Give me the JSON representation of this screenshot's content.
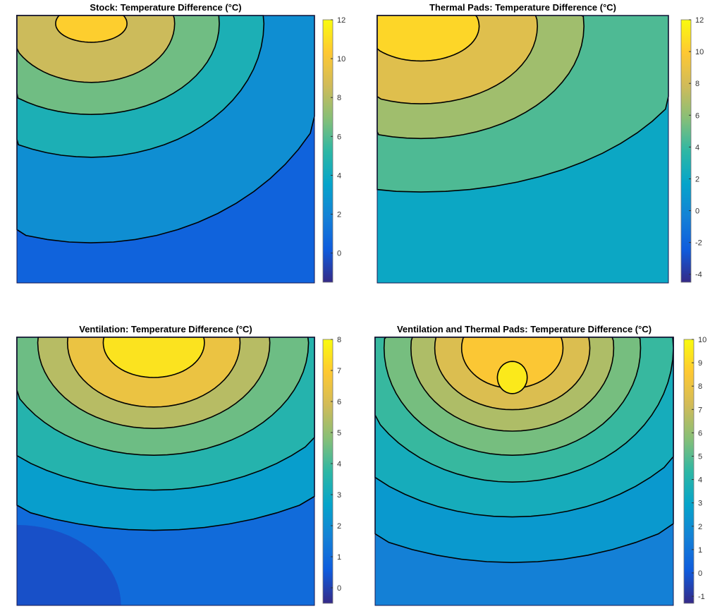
{
  "chart_data": [
    {
      "type": "heatmap",
      "title": "Stock: Temperature Difference (°C)",
      "clim": [
        -1.5,
        12
      ],
      "colorbar_ticks": [
        "12",
        "10",
        "8",
        "6",
        "4",
        "2",
        "0"
      ],
      "colorbar_tick_values": [
        12,
        10,
        8,
        6,
        4,
        2,
        0
      ],
      "background_value": 0.5,
      "contour_levels": [
        2,
        4,
        6,
        8,
        10
      ]
    },
    {
      "type": "heatmap",
      "title": "Thermal Pads: Temperature Difference (°C)",
      "clim": [
        -4.5,
        12
      ],
      "colorbar_ticks": [
        "12",
        "10",
        "8",
        "6",
        "4",
        "2",
        "0",
        "-2",
        "-4"
      ],
      "colorbar_tick_values": [
        12,
        10,
        8,
        6,
        4,
        2,
        0,
        -2,
        -4
      ],
      "background_value": 2,
      "contour_levels": [
        4,
        6,
        8,
        10
      ]
    },
    {
      "type": "heatmap",
      "title": "Ventilation: Temperature Difference (°C)",
      "clim": [
        -0.5,
        8
      ],
      "colorbar_ticks": [
        "8",
        "7",
        "6",
        "5",
        "4",
        "3",
        "2",
        "1",
        "0"
      ],
      "colorbar_tick_values": [
        8,
        7,
        6,
        5,
        4,
        3,
        2,
        1,
        0
      ],
      "background_value": 1,
      "contour_levels": [
        2,
        3,
        4,
        5,
        6,
        7
      ]
    },
    {
      "type": "heatmap",
      "title": "Ventilation and Thermal Pads: Temperature Difference (°C)",
      "clim": [
        -1.3,
        10
      ],
      "colorbar_ticks": [
        "10",
        "9",
        "8",
        "7",
        "6",
        "5",
        "4",
        "3",
        "2",
        "1",
        "0",
        "-1"
      ],
      "colorbar_tick_values": [
        10,
        9,
        8,
        7,
        6,
        5,
        4,
        3,
        2,
        1,
        0,
        -1
      ],
      "background_value": 1.5,
      "contour_levels": [
        2,
        3,
        4,
        5,
        6,
        7,
        8,
        9
      ]
    }
  ]
}
